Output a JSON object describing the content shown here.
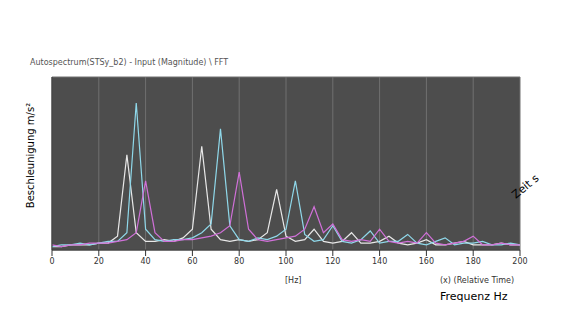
{
  "chart_data": {
    "type": "line",
    "title": "Autospectrum(STSy_b2) - Input (Magnitude) \\ FFT",
    "x_label": "Frequenz Hz",
    "y_label": "Beschleunigung m/s²",
    "z_label": "Zeit s",
    "annotations": [
      "[Hz]",
      "(x) (Relative Time)"
    ],
    "x": [
      0,
      4,
      8,
      12,
      16,
      20,
      24,
      28,
      32,
      36,
      40,
      44,
      48,
      52,
      56,
      60,
      64,
      68,
      72,
      76,
      80,
      84,
      88,
      92,
      96,
      100,
      104,
      108,
      112,
      116,
      120,
      124,
      128,
      132,
      136,
      140,
      144,
      148,
      152,
      156,
      160,
      164,
      168,
      172,
      176,
      180,
      184,
      188,
      192,
      196,
      200
    ],
    "series": [
      {
        "color": "#e8e8e8",
        "values": [
          0.02,
          0.02,
          0.03,
          0.03,
          0.03,
          0.04,
          0.04,
          0.08,
          0.55,
          0.1,
          0.05,
          0.05,
          0.06,
          0.05,
          0.07,
          0.12,
          0.6,
          0.12,
          0.06,
          0.05,
          0.06,
          0.05,
          0.06,
          0.1,
          0.35,
          0.08,
          0.05,
          0.06,
          0.12,
          0.05,
          0.04,
          0.05,
          0.1,
          0.04,
          0.04,
          0.05,
          0.08,
          0.04,
          0.03,
          0.04,
          0.06,
          0.03,
          0.03,
          0.04,
          0.05,
          0.03,
          0.03,
          0.03,
          0.04,
          0.03,
          0.03
        ]
      },
      {
        "color": "#8fd8ea",
        "values": [
          0.02,
          0.03,
          0.03,
          0.04,
          0.03,
          0.04,
          0.05,
          0.05,
          0.1,
          0.85,
          0.12,
          0.06,
          0.05,
          0.06,
          0.06,
          0.07,
          0.1,
          0.15,
          0.7,
          0.14,
          0.06,
          0.05,
          0.07,
          0.06,
          0.08,
          0.12,
          0.4,
          0.09,
          0.05,
          0.06,
          0.14,
          0.05,
          0.04,
          0.06,
          0.11,
          0.04,
          0.05,
          0.05,
          0.09,
          0.04,
          0.03,
          0.05,
          0.07,
          0.03,
          0.04,
          0.04,
          0.05,
          0.03,
          0.03,
          0.04,
          0.03
        ]
      },
      {
        "color": "#d070d8",
        "values": [
          0.03,
          0.02,
          0.03,
          0.03,
          0.04,
          0.04,
          0.04,
          0.05,
          0.06,
          0.1,
          0.4,
          0.1,
          0.05,
          0.05,
          0.06,
          0.06,
          0.07,
          0.08,
          0.1,
          0.14,
          0.45,
          0.12,
          0.06,
          0.05,
          0.06,
          0.07,
          0.08,
          0.12,
          0.25,
          0.1,
          0.15,
          0.06,
          0.05,
          0.06,
          0.05,
          0.12,
          0.05,
          0.04,
          0.05,
          0.04,
          0.1,
          0.04,
          0.03,
          0.04,
          0.05,
          0.08,
          0.03,
          0.03,
          0.04,
          0.03,
          0.03
        ]
      }
    ],
    "xlim": [
      0,
      200
    ],
    "xticks": [
      0,
      20,
      40,
      60,
      80,
      100,
      120,
      140,
      160,
      180,
      200
    ],
    "ylim": [
      0,
      1
    ],
    "tick_labels": "x",
    "grid": true
  }
}
